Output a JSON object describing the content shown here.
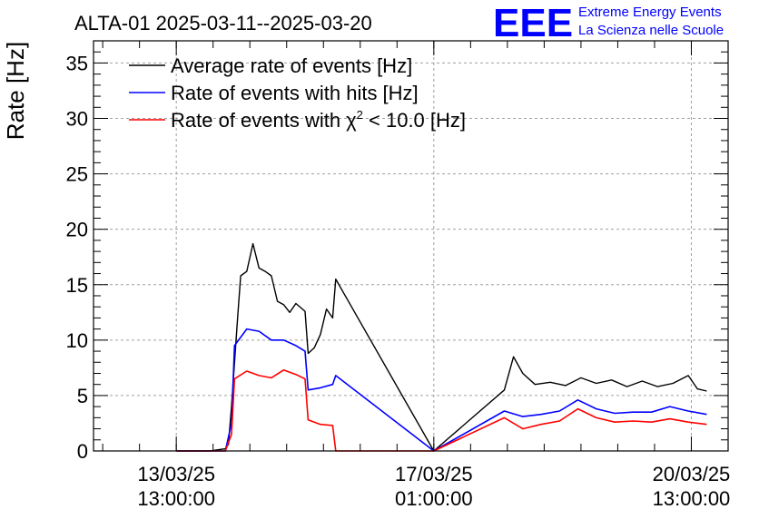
{
  "header": {
    "title": "ALTA-01 2025-03-11--2025-03-20",
    "logo_mark": "EEE",
    "logo_line1": "Extreme Energy Events",
    "logo_line2": "La Scienza nelle Scuole"
  },
  "colors": {
    "average": "#000000",
    "hits": "#0000ff",
    "chi2": "#ff0000",
    "logo": "#0000ff",
    "grid": "#a0a0a0"
  },
  "chart_data": {
    "type": "line",
    "title": "ALTA-01 2025-03-11--2025-03-20",
    "xlabel": "",
    "ylabel": "Rate [Hz]",
    "xlim": [
      "2025-03-12T10:00",
      "2025-03-21T01:00"
    ],
    "ylim": [
      0,
      37
    ],
    "grid": true,
    "legend_position": "top-left",
    "y_ticks": [
      0,
      5,
      10,
      15,
      20,
      25,
      30,
      35
    ],
    "x_ticks": [
      {
        "t": "2025-03-13T13:00",
        "line1": "13/03/25",
        "line2": "13:00:00"
      },
      {
        "t": "2025-03-17T01:00",
        "line1": "17/03/25",
        "line2": "01:00:00"
      },
      {
        "t": "2025-03-20T13:00",
        "line1": "20/03/25",
        "line2": "13:00:00"
      }
    ],
    "legend": [
      {
        "name": "Average rate of events [Hz]",
        "key": "average"
      },
      {
        "name": "Rate of events with hits [Hz]",
        "key": "hits"
      },
      {
        "name": "Rate of events with",
        "name_symbol": "χ",
        "name_sup": "2",
        "name_rest": " < 10.0 [Hz]",
        "key": "chi2"
      }
    ],
    "series": [
      {
        "key": "average",
        "points": [
          [
            "2025-03-13T13:00",
            0
          ],
          [
            "2025-03-14T00:00",
            0
          ],
          [
            "2025-03-14T05:00",
            0.2
          ],
          [
            "2025-03-14T06:00",
            0.6
          ],
          [
            "2025-03-14T07:00",
            4
          ],
          [
            "2025-03-14T09:00",
            12
          ],
          [
            "2025-03-14T10:00",
            15.8
          ],
          [
            "2025-03-14T12:00",
            16.2
          ],
          [
            "2025-03-14T14:00",
            18.7
          ],
          [
            "2025-03-14T16:00",
            16.5
          ],
          [
            "2025-03-14T18:00",
            16.2
          ],
          [
            "2025-03-14T20:00",
            15.8
          ],
          [
            "2025-03-14T22:00",
            13.5
          ],
          [
            "2025-03-15T00:00",
            13.2
          ],
          [
            "2025-03-15T02:00",
            12.5
          ],
          [
            "2025-03-15T04:00",
            13.3
          ],
          [
            "2025-03-15T07:00",
            12.6
          ],
          [
            "2025-03-15T08:00",
            8.8
          ],
          [
            "2025-03-15T10:00",
            9.3
          ],
          [
            "2025-03-15T12:00",
            10.5
          ],
          [
            "2025-03-15T14:00",
            12.8
          ],
          [
            "2025-03-15T16:00",
            12.0
          ],
          [
            "2025-03-15T17:00",
            15.5
          ],
          [
            "2025-03-17T01:00",
            0
          ],
          [
            "2025-03-18T00:00",
            5.5
          ],
          [
            "2025-03-18T03:00",
            8.5
          ],
          [
            "2025-03-18T06:00",
            7.0
          ],
          [
            "2025-03-18T10:00",
            6.0
          ],
          [
            "2025-03-18T15:00",
            6.2
          ],
          [
            "2025-03-18T20:00",
            5.9
          ],
          [
            "2025-03-19T01:00",
            6.6
          ],
          [
            "2025-03-19T06:00",
            6.1
          ],
          [
            "2025-03-19T11:00",
            6.4
          ],
          [
            "2025-03-19T16:00",
            5.8
          ],
          [
            "2025-03-19T21:00",
            6.3
          ],
          [
            "2025-03-20T02:00",
            5.8
          ],
          [
            "2025-03-20T07:00",
            6.1
          ],
          [
            "2025-03-20T12:00",
            6.8
          ],
          [
            "2025-03-20T15:00",
            5.6
          ],
          [
            "2025-03-20T18:00",
            5.4
          ]
        ]
      },
      {
        "key": "hits",
        "points": [
          [
            "2025-03-13T13:00",
            0
          ],
          [
            "2025-03-14T05:00",
            0
          ],
          [
            "2025-03-14T07:00",
            2.5
          ],
          [
            "2025-03-14T08:00",
            9.5
          ],
          [
            "2025-03-14T12:00",
            11.0
          ],
          [
            "2025-03-14T16:00",
            10.8
          ],
          [
            "2025-03-14T20:00",
            10.0
          ],
          [
            "2025-03-15T00:00",
            10.0
          ],
          [
            "2025-03-15T04:00",
            9.5
          ],
          [
            "2025-03-15T07:00",
            9.0
          ],
          [
            "2025-03-15T08:00",
            5.5
          ],
          [
            "2025-03-15T12:00",
            5.7
          ],
          [
            "2025-03-15T16:00",
            6.0
          ],
          [
            "2025-03-15T17:00",
            6.8
          ],
          [
            "2025-03-17T01:00",
            0
          ],
          [
            "2025-03-18T00:00",
            3.6
          ],
          [
            "2025-03-18T06:00",
            3.1
          ],
          [
            "2025-03-18T12:00",
            3.3
          ],
          [
            "2025-03-18T18:00",
            3.6
          ],
          [
            "2025-03-19T00:00",
            4.6
          ],
          [
            "2025-03-19T06:00",
            3.8
          ],
          [
            "2025-03-19T12:00",
            3.4
          ],
          [
            "2025-03-19T18:00",
            3.5
          ],
          [
            "2025-03-20T00:00",
            3.5
          ],
          [
            "2025-03-20T06:00",
            4.0
          ],
          [
            "2025-03-20T12:00",
            3.6
          ],
          [
            "2025-03-20T18:00",
            3.3
          ]
        ]
      },
      {
        "key": "chi2",
        "points": [
          [
            "2025-03-13T13:00",
            0
          ],
          [
            "2025-03-14T05:00",
            0
          ],
          [
            "2025-03-14T07:00",
            1.5
          ],
          [
            "2025-03-14T08:00",
            6.5
          ],
          [
            "2025-03-14T12:00",
            7.2
          ],
          [
            "2025-03-14T16:00",
            6.8
          ],
          [
            "2025-03-14T20:00",
            6.6
          ],
          [
            "2025-03-15T00:00",
            7.3
          ],
          [
            "2025-03-15T04:00",
            6.9
          ],
          [
            "2025-03-15T07:00",
            6.5
          ],
          [
            "2025-03-15T08:00",
            2.8
          ],
          [
            "2025-03-15T12:00",
            2.4
          ],
          [
            "2025-03-15T16:00",
            2.3
          ],
          [
            "2025-03-15T17:00",
            0
          ],
          [
            "2025-03-17T01:00",
            0
          ],
          [
            "2025-03-18T00:00",
            3.0
          ],
          [
            "2025-03-18T06:00",
            2.0
          ],
          [
            "2025-03-18T12:00",
            2.4
          ],
          [
            "2025-03-18T18:00",
            2.7
          ],
          [
            "2025-03-19T00:00",
            3.8
          ],
          [
            "2025-03-19T06:00",
            3.0
          ],
          [
            "2025-03-19T12:00",
            2.6
          ],
          [
            "2025-03-19T18:00",
            2.7
          ],
          [
            "2025-03-20T00:00",
            2.6
          ],
          [
            "2025-03-20T06:00",
            2.9
          ],
          [
            "2025-03-20T12:00",
            2.6
          ],
          [
            "2025-03-20T18:00",
            2.4
          ]
        ]
      }
    ]
  }
}
